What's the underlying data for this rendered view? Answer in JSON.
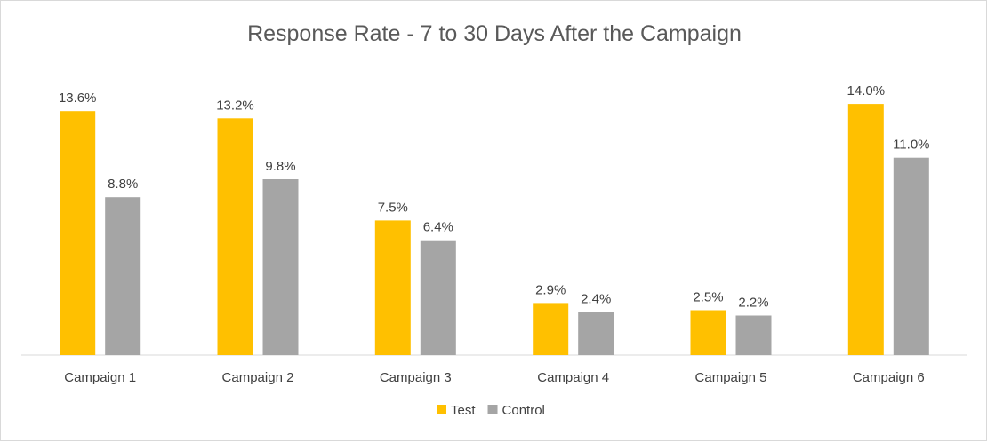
{
  "chart_data": {
    "type": "bar",
    "title": "Response  Rate - 7 to 30 Days After the Campaign",
    "categories": [
      "Campaign 1",
      "Campaign 2",
      "Campaign 3",
      "Campaign 4",
      "Campaign 5",
      "Campaign 6"
    ],
    "series": [
      {
        "name": "Test",
        "color": "#ffc000",
        "values": [
          13.6,
          13.2,
          7.5,
          2.9,
          2.5,
          14.0
        ]
      },
      {
        "name": "Control",
        "color": "#a5a5a5",
        "values": [
          8.8,
          9.8,
          6.4,
          2.4,
          2.2,
          11.0
        ]
      }
    ],
    "value_format": "percent_1dp",
    "xlabel": "",
    "ylabel": "",
    "ylim": [
      0,
      14.5
    ],
    "grid": false,
    "legend": "bottom-center"
  }
}
